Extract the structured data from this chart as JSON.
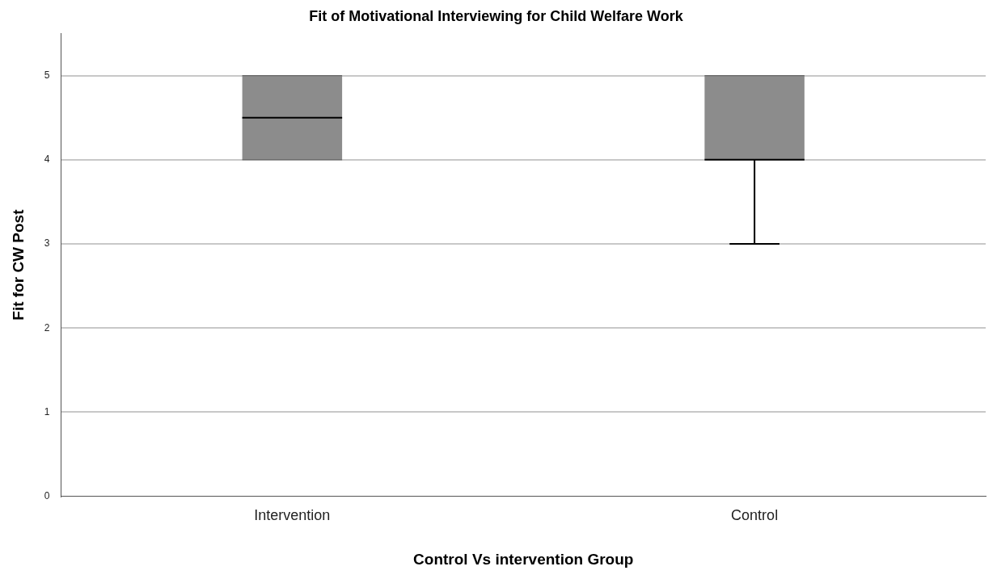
{
  "chart_data": {
    "type": "box",
    "title": "Fit of Motivational Interviewing for Child Welfare Work",
    "xlabel": "Control Vs intervention Group",
    "ylabel": "Fit for CW Post",
    "categories": [
      "Intervention",
      "Control"
    ],
    "color": "#8c8c8c",
    "boxes": [
      {
        "low": 4,
        "q1": 4,
        "median": 4.5,
        "q3": 5,
        "high": 5
      },
      {
        "low": 3,
        "q1": 4,
        "median": 4,
        "q3": 5,
        "high": 5
      }
    ],
    "ylim": [
      0,
      5.5
    ],
    "yticks": [
      0,
      1,
      2,
      3,
      4,
      5
    ],
    "grid": "y",
    "legend": false
  }
}
